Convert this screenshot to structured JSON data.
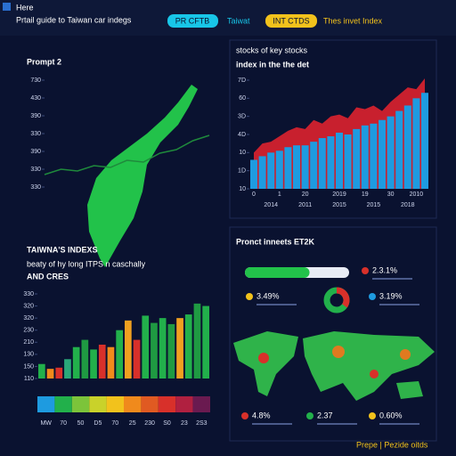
{
  "header": {
    "title": "Here",
    "subtitle": "Prtail guide to Taiwan car indegs",
    "tabs": [
      "PR CFTB",
      "Taiwat",
      "INT CTDS",
      "Thes invet Index"
    ]
  },
  "chart_data": [
    {
      "type": "line",
      "title": "Prompt 2",
      "color": "#1f8a3c",
      "xlim": [
        0,
        10
      ],
      "x": [
        0,
        1,
        2,
        3,
        4,
        5,
        6,
        7,
        8,
        9,
        10
      ],
      "values": [
        0.7,
        1.0,
        0.9,
        1.2,
        1.1,
        1.5,
        1.4,
        1.9,
        2.1,
        2.6,
        2.9
      ],
      "ylim": [
        0,
        6
      ],
      "yticks": [
        {
          "value": 0,
          "label": "330"
        },
        {
          "value": 1,
          "label": "330"
        },
        {
          "value": 2,
          "label": "390"
        },
        {
          "value": 3,
          "label": "330"
        },
        {
          "value": 4,
          "label": "390"
        },
        {
          "value": 5,
          "label": "430"
        },
        {
          "value": 6,
          "label": "730"
        }
      ]
    },
    {
      "type": "bar_area",
      "title": "stocks of key stocks",
      "subtitle": "index in the the det",
      "xlim": [
        0,
        20
      ],
      "ylim": [
        0,
        6
      ],
      "yticks": [
        {
          "value": 0,
          "label": "10"
        },
        {
          "value": 1,
          "label": "1D"
        },
        {
          "value": 2,
          "label": "10"
        },
        {
          "value": 3,
          "label": "4D"
        },
        {
          "value": 4,
          "label": "3D"
        },
        {
          "value": 5,
          "label": "60"
        },
        {
          "value": 6,
          "label": "7D"
        }
      ],
      "xticks": [
        {
          "value": 0,
          "label": "0"
        },
        {
          "value": 3,
          "label": "1"
        },
        {
          "value": 6,
          "label": "20"
        },
        {
          "value": 10,
          "label": "2019"
        },
        {
          "value": 13,
          "label": "19"
        },
        {
          "value": 16,
          "label": "30"
        },
        {
          "value": 19,
          "label": "2010"
        }
      ],
      "xticks2": [
        {
          "value": 2,
          "label": "2014"
        },
        {
          "value": 6,
          "label": "2011"
        },
        {
          "value": 10,
          "label": "2015"
        },
        {
          "value": 14,
          "label": "2015"
        },
        {
          "value": 18,
          "label": "2018"
        }
      ],
      "series": [
        {
          "color": "#1e9be0",
          "values": [
            1.6,
            1.8,
            2.0,
            2.1,
            2.3,
            2.4,
            2.4,
            2.6,
            2.8,
            2.9,
            3.1,
            3.0,
            3.3,
            3.5,
            3.6,
            3.8,
            4.0,
            4.3,
            4.6,
            5.0,
            5.3
          ]
        },
        {
          "color": "#c8202e",
          "values": [
            2.0,
            2.5,
            2.6,
            2.9,
            3.2,
            3.4,
            3.3,
            3.8,
            3.6,
            4.0,
            4.1,
            3.9,
            4.5,
            4.4,
            4.6,
            4.3,
            4.8,
            5.2,
            5.6,
            5.5,
            6.1
          ]
        }
      ]
    },
    {
      "type": "bar",
      "title": "TAIWNA'S INDEXS",
      "subtitle": "beaty of hy long ITPS n caschally",
      "note": "AND CRES",
      "ylim": [
        0,
        7
      ],
      "yticks": [
        {
          "value": 0,
          "label": "110"
        },
        {
          "value": 1,
          "label": "150"
        },
        {
          "value": 2,
          "label": "130"
        },
        {
          "value": 3,
          "label": "210"
        },
        {
          "value": 4,
          "label": "230"
        },
        {
          "value": 5,
          "label": "320"
        },
        {
          "value": 6,
          "label": "320"
        },
        {
          "value": 7,
          "label": "330"
        }
      ],
      "values": [
        1.2,
        0.8,
        0.9,
        1.6,
        2.6,
        3.2,
        2.4,
        2.8,
        2.6,
        4.0,
        4.8,
        3.2,
        5.2,
        4.6,
        5.0,
        4.5,
        5.0,
        5.3,
        6.2,
        6.0
      ],
      "colors": [
        "#22b04b",
        "#f08a1c",
        "#d8302a",
        "#2aa87a",
        "#22b04b",
        "#1f9a42",
        "#22b04b",
        "#d8302a",
        "#f08a1c",
        "#22b04b",
        "#f0a020",
        "#d8302a",
        "#22b04b",
        "#1f9a42",
        "#22b04b",
        "#1f9a42",
        "#f0a020",
        "#22b04b",
        "#1f9a42",
        "#22b04b"
      ],
      "strip_labels": [
        "MW",
        "70",
        "50",
        "D5",
        "70",
        "25",
        "230",
        "S0",
        "23",
        "2S3"
      ]
    },
    {
      "type": "stats",
      "title": "Pronct inneets ET2K",
      "progress": 0.62,
      "donut": 35,
      "stats": [
        "2.3.1%",
        "3.49%",
        "3.19%",
        "4.8%",
        "2.37",
        "0.60%"
      ],
      "footer": "Prepe | Pezide oitds"
    }
  ]
}
